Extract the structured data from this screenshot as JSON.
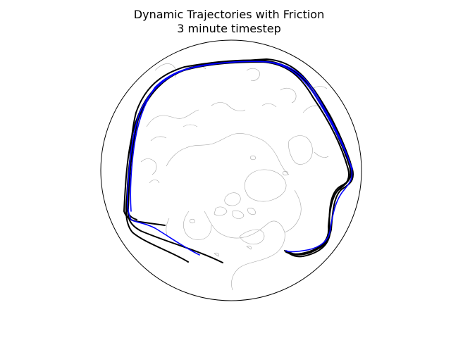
{
  "figure": {
    "title_line1": "Dynamic Trajectories with Friction",
    "title_line2": "3 minute timestep"
  },
  "map": {
    "projection": "orthographic",
    "view": "north-polar",
    "coastline_color": "#a6a6a6",
    "boundary_color": "#000000"
  },
  "trajectories": [
    {
      "color": "#000000"
    },
    {
      "color": "#000000"
    },
    {
      "color": "#000000"
    },
    {
      "color": "#000000"
    },
    {
      "color": "#0000ff"
    },
    {
      "color": "#0000ff"
    }
  ]
}
